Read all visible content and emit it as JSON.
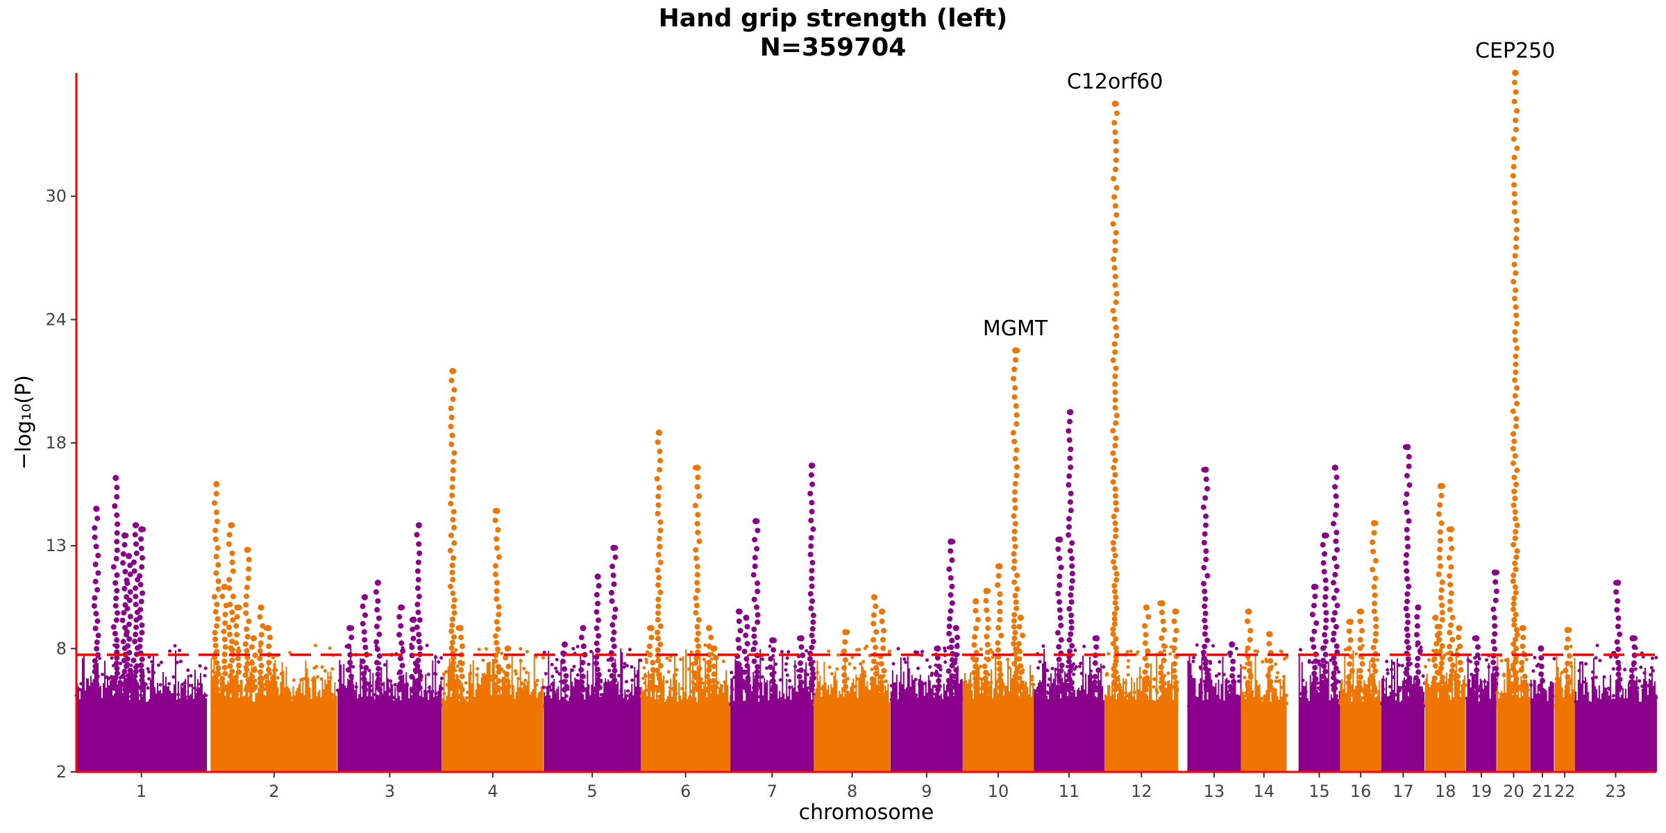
{
  "chart_data": {
    "type": "scatter",
    "title": "Hand grip strength (left)",
    "subtitle": "N=359704",
    "xlabel": "chromosome",
    "ylabel": "−log₁₀(P)",
    "ylim": [
      2,
      36
    ],
    "yticks": [
      2,
      8,
      13,
      18,
      24,
      30
    ],
    "significance_threshold": 7.7,
    "grid": false,
    "colors": {
      "odd": "#8B008B",
      "even": "#EE7600",
      "threshold": "#FF0000",
      "axis": "#FF0000"
    },
    "chromosomes": [
      {
        "label": "1",
        "start": 0,
        "end": 248,
        "peaks": [
          [
            38,
            14.8
          ],
          [
            75,
            16.3
          ],
          [
            92,
            13.5
          ],
          [
            100,
            12.5
          ],
          [
            113,
            14.0
          ],
          [
            124,
            13.8
          ]
        ]
      },
      {
        "label": "2",
        "start": 256,
        "end": 498,
        "peaks": [
          [
            11,
            16.0
          ],
          [
            26,
            11.0
          ],
          [
            39,
            14.0
          ],
          [
            51,
            10.0
          ],
          [
            70,
            12.8
          ],
          [
            82,
            8.5
          ],
          [
            96,
            10.0
          ],
          [
            110,
            9.0
          ]
        ]
      },
      {
        "label": "3",
        "start": 498,
        "end": 697,
        "peaks": [
          [
            23,
            9.0
          ],
          [
            52,
            10.5
          ],
          [
            77,
            11.2
          ],
          [
            121,
            10.0
          ],
          [
            145,
            9.4
          ],
          [
            155,
            14.0
          ]
        ]
      },
      {
        "label": "4",
        "start": 697,
        "end": 891,
        "peaks": [
          [
            20,
            21.5
          ],
          [
            35,
            9.0
          ],
          [
            105,
            14.7
          ],
          [
            125,
            8.0
          ]
        ]
      },
      {
        "label": "5",
        "start": 891,
        "end": 1076,
        "peaks": [
          [
            40,
            8.2
          ],
          [
            75,
            9.0
          ],
          [
            103,
            11.5
          ],
          [
            133,
            12.9
          ]
        ]
      },
      {
        "label": "6",
        "start": 1076,
        "end": 1247,
        "peaks": [
          [
            20,
            9.0
          ],
          [
            35,
            18.5
          ],
          [
            108,
            16.8
          ],
          [
            130,
            9.0
          ],
          [
            140,
            8.0
          ]
        ]
      },
      {
        "label": "7",
        "start": 1247,
        "end": 1406,
        "peaks": [
          [
            16,
            9.8
          ],
          [
            30,
            9.5
          ],
          [
            48,
            14.2
          ],
          [
            80,
            8.4
          ],
          [
            135,
            8.5
          ],
          [
            155,
            16.9
          ]
        ]
      },
      {
        "label": "8",
        "start": 1406,
        "end": 1552,
        "peaks": [
          [
            60,
            8.8
          ],
          [
            115,
            10.5
          ],
          [
            130,
            9.8
          ]
        ]
      },
      {
        "label": "9",
        "start": 1552,
        "end": 1690,
        "peaks": [
          [
            90,
            8.0
          ],
          [
            115,
            13.2
          ],
          [
            125,
            9.0
          ]
        ]
      },
      {
        "label": "10",
        "start": 1690,
        "end": 1825,
        "peaks": [
          [
            25,
            10.3
          ],
          [
            45,
            10.8
          ],
          [
            70,
            12.0
          ],
          [
            100,
            22.5
          ],
          [
            110,
            9.5
          ]
        ]
      },
      {
        "label": "11",
        "start": 1825,
        "end": 1960,
        "peaks": [
          [
            50,
            13.3
          ],
          [
            70,
            19.5
          ],
          [
            120,
            8.5
          ]
        ]
      },
      {
        "label": "12",
        "start": 1960,
        "end": 2101,
        "peaks": [
          [
            20,
            34.5
          ],
          [
            80,
            10.0
          ],
          [
            110,
            10.2
          ],
          [
            135,
            9.8
          ]
        ]
      },
      {
        "label": "13",
        "start": 2118,
        "end": 2220,
        "peaks": [
          [
            35,
            16.7
          ],
          [
            85,
            8.2
          ]
        ]
      },
      {
        "label": "14",
        "start": 2220,
        "end": 2308,
        "peaks": [
          [
            15,
            9.8
          ],
          [
            55,
            8.7
          ]
        ]
      },
      {
        "label": "15",
        "start": 2330,
        "end": 2409,
        "peaks": [
          [
            30,
            11.0
          ],
          [
            50,
            13.5
          ],
          [
            70,
            16.8
          ]
        ]
      },
      {
        "label": "16",
        "start": 2409,
        "end": 2488,
        "peaks": [
          [
            20,
            9.3
          ],
          [
            40,
            9.8
          ],
          [
            65,
            14.1
          ]
        ]
      },
      {
        "label": "17",
        "start": 2488,
        "end": 2571,
        "peaks": [
          [
            50,
            17.8
          ],
          [
            70,
            10.0
          ]
        ]
      },
      {
        "label": "18",
        "start": 2571,
        "end": 2649,
        "peaks": [
          [
            20,
            9.5
          ],
          [
            30,
            15.9
          ],
          [
            50,
            13.8
          ],
          [
            65,
            9.0
          ]
        ]
      },
      {
        "label": "19",
        "start": 2649,
        "end": 2708,
        "peaks": [
          [
            20,
            8.5
          ],
          [
            55,
            11.7
          ]
        ]
      },
      {
        "label": "20",
        "start": 2708,
        "end": 2772,
        "peaks": [
          [
            35,
            36.0
          ],
          [
            50,
            9.0
          ]
        ]
      },
      {
        "label": "21",
        "start": 2772,
        "end": 2818,
        "peaks": [
          [
            20,
            8.0
          ]
        ]
      },
      {
        "label": "22",
        "start": 2818,
        "end": 2857,
        "peaks": [
          [
            25,
            8.9
          ]
        ]
      },
      {
        "label": "23",
        "start": 2857,
        "end": 3012,
        "peaks": [
          [
            82,
            11.2
          ],
          [
            110,
            8.5
          ]
        ]
      }
    ],
    "annotations": [
      {
        "label": "C12orf60",
        "chrom": "12",
        "pos": 20,
        "y": 34.5
      },
      {
        "label": "CEP250",
        "chrom": "20",
        "pos": 35,
        "y": 36.0
      },
      {
        "label": "MGMT",
        "chrom": "10",
        "pos": 100,
        "y": 22.5
      }
    ]
  }
}
